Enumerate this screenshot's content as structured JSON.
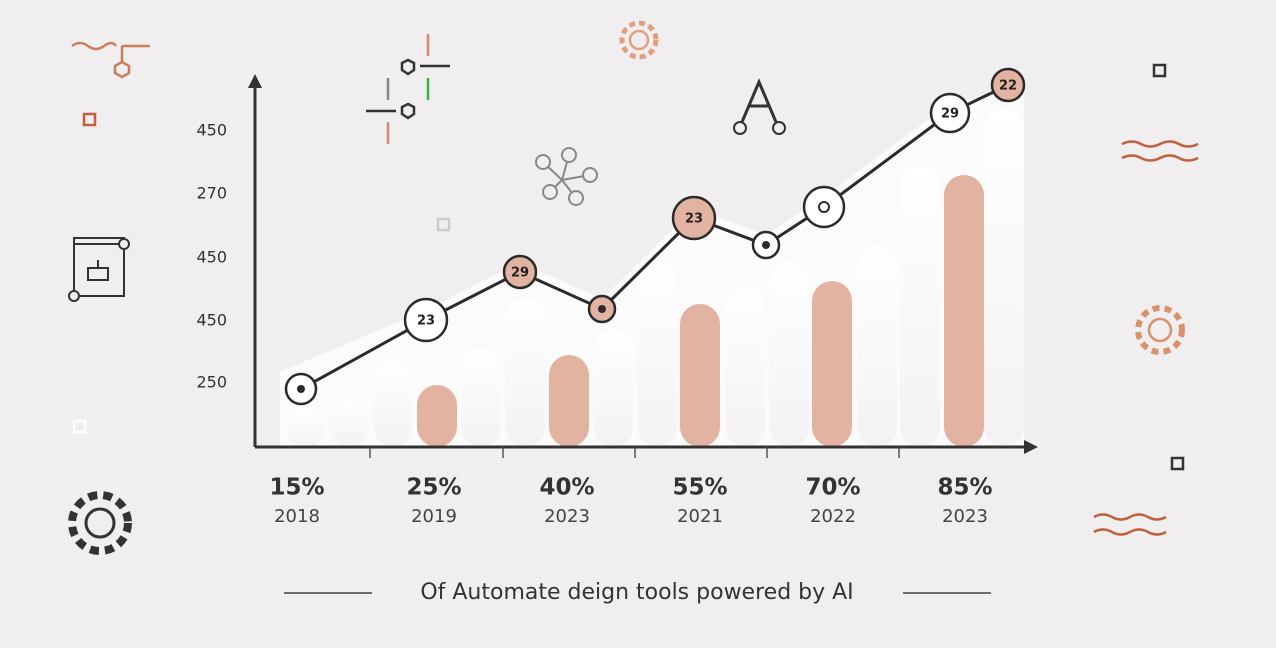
{
  "y_labels": [
    "450",
    "270",
    "450",
    "450",
    "250"
  ],
  "columns": [
    {
      "percent": "15%",
      "year": "2018"
    },
    {
      "percent": "25%",
      "year": "2019"
    },
    {
      "percent": "40%",
      "year": "2023"
    },
    {
      "percent": "55%",
      "year": "2021"
    },
    {
      "percent": "70%",
      "year": "2022"
    },
    {
      "percent": "85%",
      "year": "2023"
    }
  ],
  "point_labels": [
    "23",
    "29",
    "23",
    "29",
    "22"
  ],
  "caption": "Of Automate deign tools powered by AI"
}
